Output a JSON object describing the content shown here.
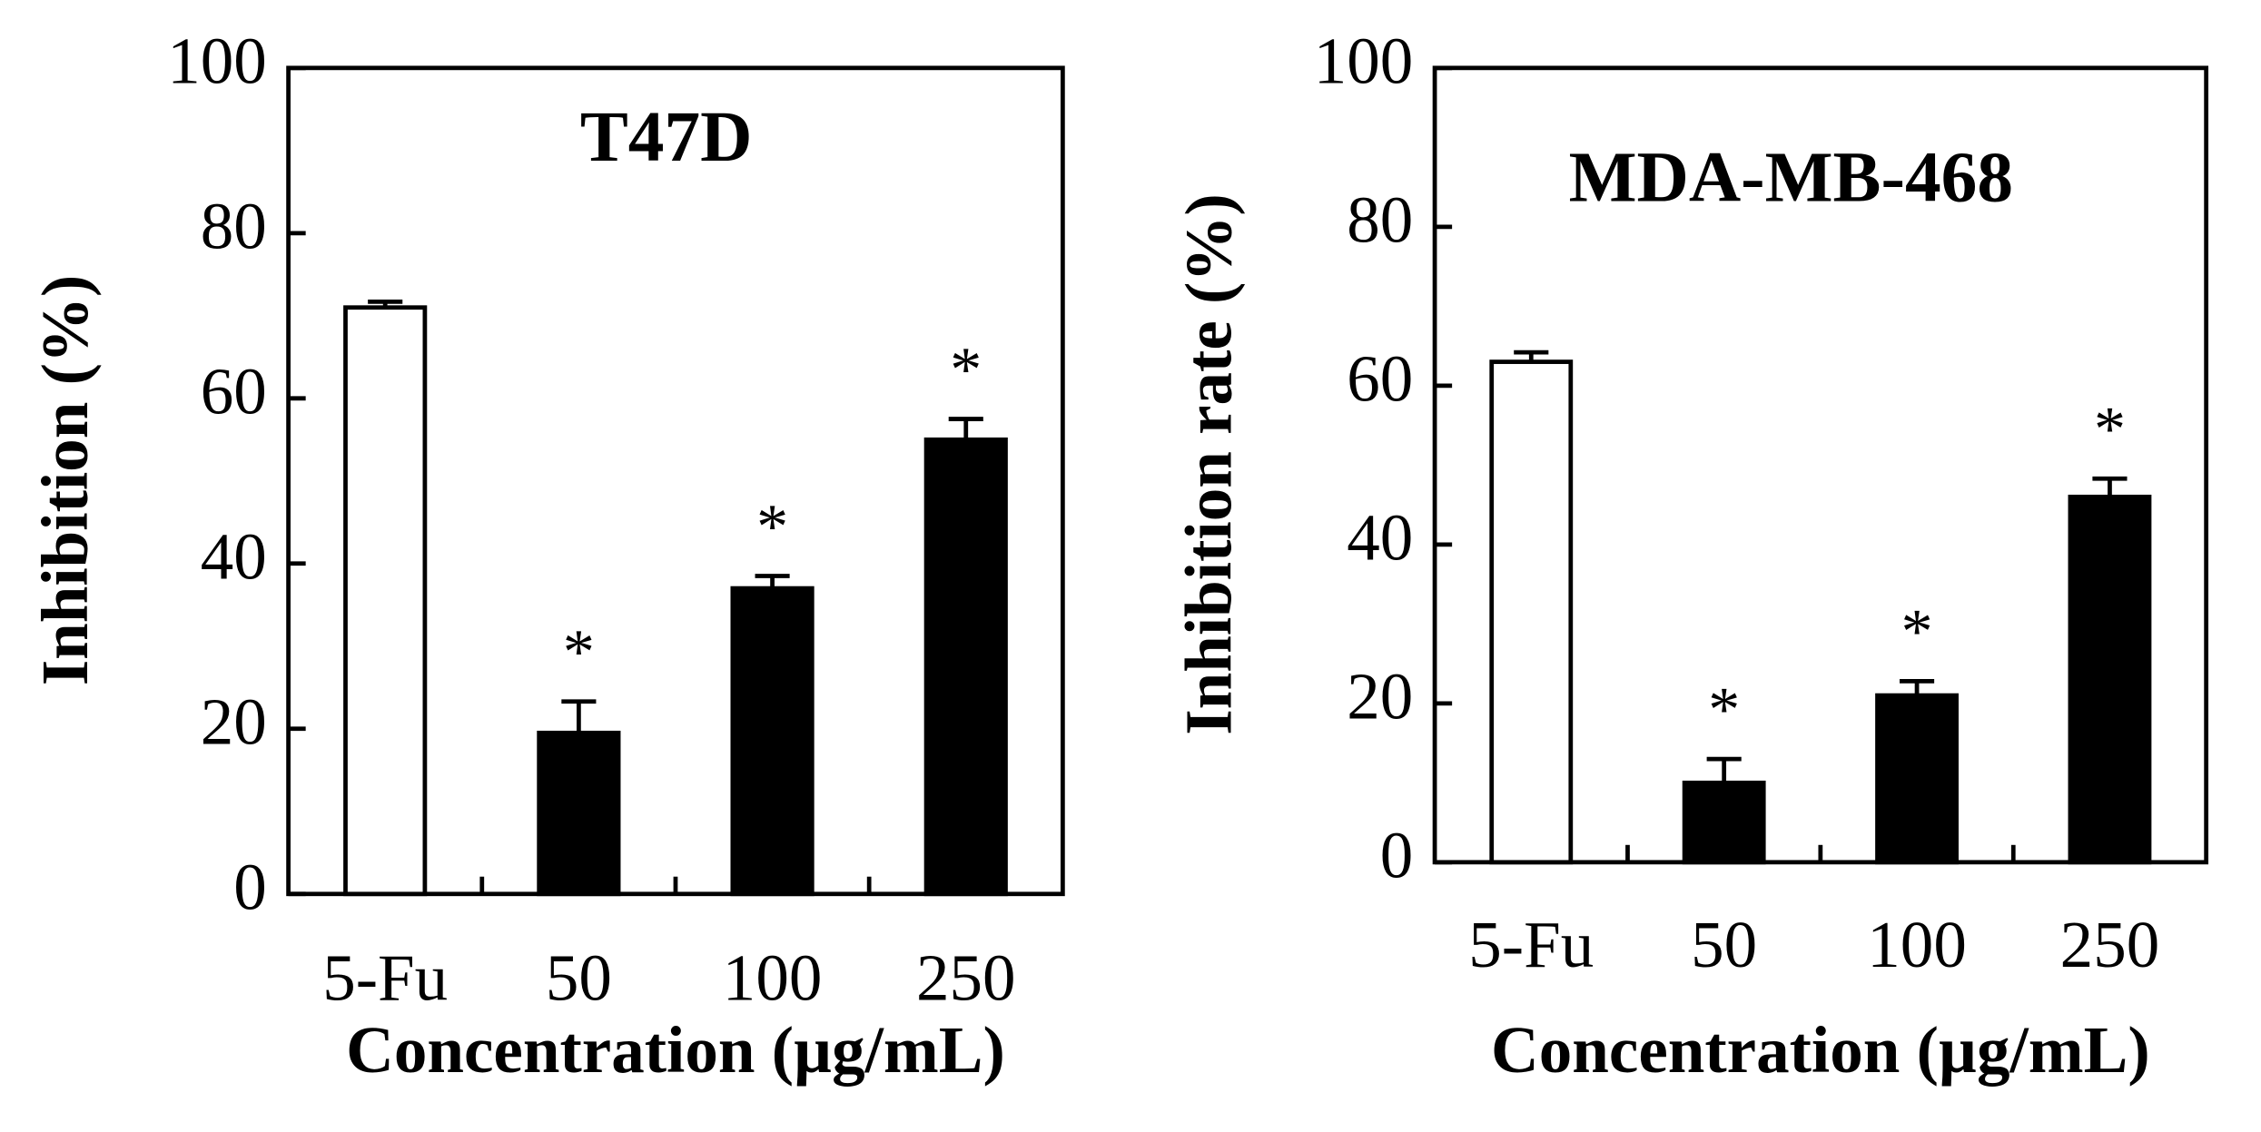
{
  "chart_data": [
    {
      "type": "bar",
      "title": "T47D",
      "y_label": "Inhibition (%)",
      "x_label": "Concentration (µg/mL)",
      "categories": [
        "5-Fu",
        "50",
        "100",
        "250"
      ],
      "values": [
        71,
        19.5,
        37,
        55
      ],
      "errors": [
        0.7,
        3.8,
        1.5,
        2.5
      ],
      "colors": [
        "#ffffff",
        "#000000",
        "#000000",
        "#000000"
      ],
      "significance": [
        null,
        "*",
        "*",
        "*"
      ],
      "ylim": [
        0,
        100
      ],
      "yticks": [
        0,
        20,
        40,
        60,
        80,
        100
      ],
      "grid": false
    },
    {
      "type": "bar",
      "title": "MDA-MB-468",
      "y_label": "Inhibition rate (%)",
      "x_label": "Concentration (µg/mL)",
      "categories": [
        "5-Fu",
        "50",
        "100",
        "250"
      ],
      "values": [
        63,
        10,
        21,
        46
      ],
      "errors": [
        1.2,
        3,
        1.8,
        2.3
      ],
      "colors": [
        "#ffffff",
        "#000000",
        "#000000",
        "#000000"
      ],
      "significance": [
        null,
        "*",
        "*",
        "*"
      ],
      "ylim": [
        0,
        100
      ],
      "yticks": [
        0,
        20,
        40,
        60,
        80,
        100
      ],
      "grid": false
    }
  ]
}
